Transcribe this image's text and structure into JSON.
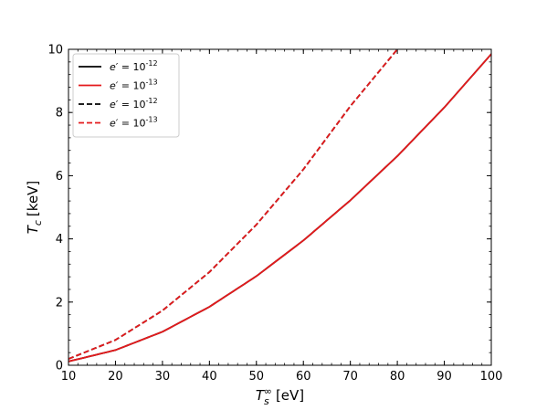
{
  "chart_data": {
    "type": "line",
    "xlabel": "T_s^∞ [eV]",
    "ylabel": "T_c [keV]",
    "xlim": [
      10,
      100
    ],
    "ylim": [
      0,
      10
    ],
    "xticks": [
      10,
      20,
      30,
      40,
      50,
      60,
      70,
      80,
      90,
      100
    ],
    "yticks": [
      0,
      2,
      4,
      6,
      8,
      10
    ],
    "grid": false,
    "legend_position": "top-left",
    "series": [
      {
        "name": "e′ = 10^{-12}",
        "color": "#000000",
        "style": "solid",
        "x": [
          10,
          20,
          30,
          40,
          50,
          60,
          70,
          80,
          90,
          100
        ],
        "y": [
          0.12,
          0.48,
          1.06,
          1.85,
          2.82,
          3.95,
          5.22,
          6.62,
          8.16,
          9.85
        ]
      },
      {
        "name": "e′ = 10^{-13}",
        "color": "#e41a1c",
        "style": "solid",
        "x": [
          10,
          20,
          30,
          40,
          50,
          60,
          70,
          80,
          90,
          100
        ],
        "y": [
          0.12,
          0.48,
          1.06,
          1.85,
          2.82,
          3.95,
          5.22,
          6.62,
          8.16,
          9.85
        ]
      },
      {
        "name": "e′ = 10^{-12}",
        "color": "#000000",
        "style": "dashed",
        "x": [
          10,
          20,
          30,
          40,
          50,
          60,
          70,
          80
        ],
        "y": [
          0.2,
          0.8,
          1.73,
          2.95,
          4.45,
          6.2,
          8.2,
          10.0
        ]
      },
      {
        "name": "e′ = 10^{-13}",
        "color": "#e41a1c",
        "style": "dashed",
        "x": [
          10,
          20,
          30,
          40,
          50,
          60,
          70,
          80
        ],
        "y": [
          0.2,
          0.8,
          1.73,
          2.95,
          4.45,
          6.2,
          8.2,
          10.0
        ]
      }
    ]
  }
}
